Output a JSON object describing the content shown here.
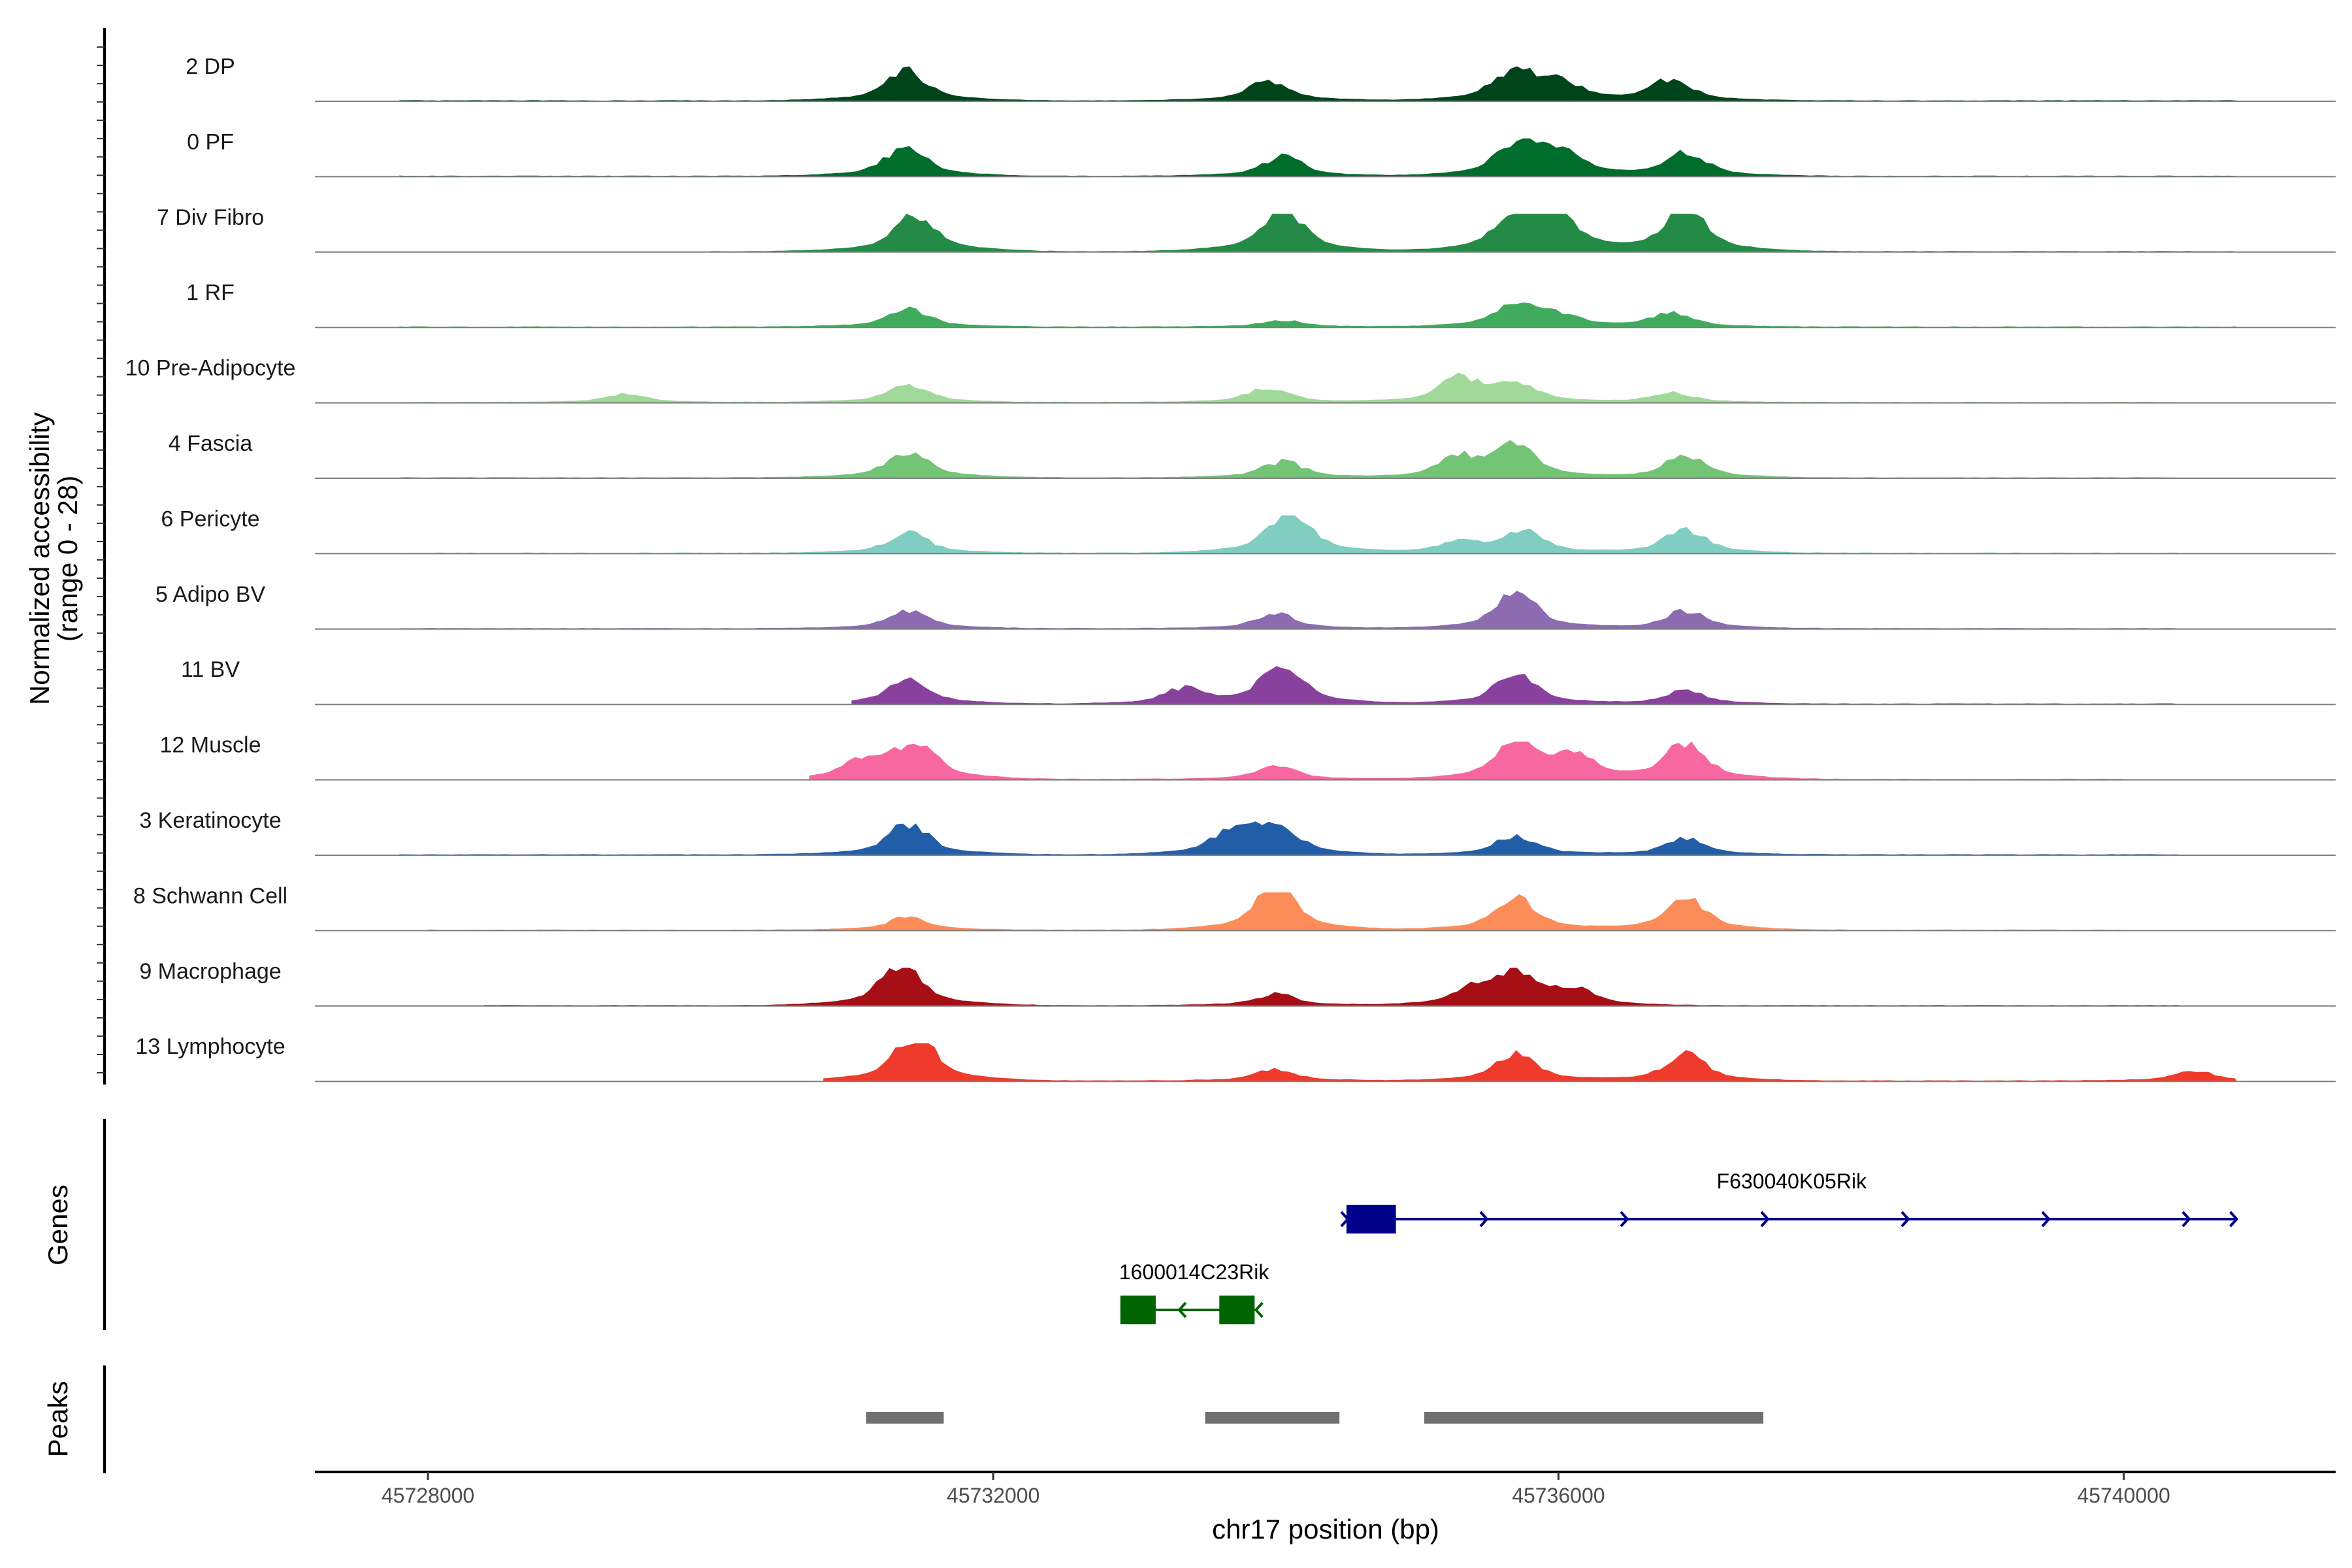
{
  "chart_data": {
    "type": "area",
    "title": "",
    "xlabel": "chr17 position (bp)",
    "ylabel": "Normalized accessibility",
    "ylabel_range": "(range 0 - 28)",
    "xlim": [
      45727200,
      45741500
    ],
    "ylim": [
      0,
      28
    ],
    "xticks": [
      45728000,
      45732000,
      45736000,
      45740000
    ],
    "xtick_labels": [
      "45728000",
      "45732000",
      "45736000",
      "45740000"
    ],
    "tracks": [
      {
        "name": "2 DP",
        "color": "#00441b",
        "span": [
          45727800,
          45740800
        ],
        "peaks": [
          [
            45731380,
            19
          ],
          [
            45733950,
            13
          ],
          [
            45735680,
            18
          ],
          [
            45736000,
            11
          ],
          [
            45736800,
            13
          ]
        ]
      },
      {
        "name": "0 PF",
        "color": "#006d2c",
        "span": [
          45727800,
          45740800
        ],
        "peaks": [
          [
            45731380,
            18
          ],
          [
            45734050,
            12
          ],
          [
            45735700,
            19
          ],
          [
            45736000,
            16
          ],
          [
            45736900,
            15
          ]
        ]
      },
      {
        "name": "7 Div Fibro",
        "color": "#238b45",
        "span": [
          45730000,
          45740800
        ],
        "peaks": [
          [
            45731450,
            24
          ],
          [
            45734050,
            28
          ],
          [
            45735700,
            24
          ],
          [
            45736000,
            19
          ],
          [
            45736900,
            27
          ]
        ]
      },
      {
        "name": "1 RF",
        "color": "#41ab5d",
        "span": [
          45727800,
          45740800
        ],
        "peaks": [
          [
            45731400,
            11
          ],
          [
            45734050,
            4
          ],
          [
            45735700,
            15
          ],
          [
            45736000,
            6
          ],
          [
            45736800,
            9
          ]
        ]
      },
      {
        "name": "10 Pre-Adipocyte",
        "color": "#a1d99b",
        "span": [
          45727800,
          45740400
        ],
        "peaks": [
          [
            45729400,
            5
          ],
          [
            45731400,
            11
          ],
          [
            45733950,
            9
          ],
          [
            45735300,
            15
          ],
          [
            45735700,
            12
          ],
          [
            45736800,
            6
          ]
        ]
      },
      {
        "name": "4 Fascia",
        "color": "#74c476",
        "span": [
          45727800,
          45740400
        ],
        "peaks": [
          [
            45731400,
            17
          ],
          [
            45734050,
            10
          ],
          [
            45735300,
            12
          ],
          [
            45735700,
            20
          ],
          [
            45736900,
            14
          ]
        ]
      },
      {
        "name": "6 Pericyte",
        "color": "#80cdc1",
        "span": [
          45727800,
          45740400
        ],
        "peaks": [
          [
            45731400,
            12
          ],
          [
            45734100,
            28
          ],
          [
            45735300,
            7
          ],
          [
            45735750,
            13
          ],
          [
            45736900,
            15
          ]
        ]
      },
      {
        "name": "5 Adipo BV",
        "color": "#8c6bb1",
        "span": [
          45727800,
          45740400
        ],
        "peaks": [
          [
            45731400,
            11
          ],
          [
            45734000,
            9
          ],
          [
            45735700,
            22
          ],
          [
            45736900,
            11
          ]
        ]
      },
      {
        "name": "11 BV",
        "color": "#88419d",
        "span": [
          45731000,
          45740400
        ],
        "peaks": [
          [
            45731400,
            16
          ],
          [
            45733350,
            9
          ],
          [
            45734050,
            26
          ],
          [
            45735700,
            19
          ],
          [
            45736900,
            8
          ]
        ]
      },
      {
        "name": "12 Muscle",
        "color": "#f768a1",
        "span": [
          45730700,
          45740000
        ],
        "peaks": [
          [
            45731100,
            12
          ],
          [
            45731450,
            22
          ],
          [
            45734000,
            8
          ],
          [
            45735700,
            24
          ],
          [
            45736100,
            14
          ],
          [
            45736900,
            22
          ]
        ]
      },
      {
        "name": "3 Keratinocyte",
        "color": "#225ea8",
        "span": [
          45727800,
          45740400
        ],
        "peaks": [
          [
            45731400,
            19
          ],
          [
            45733700,
            14
          ],
          [
            45734000,
            18
          ],
          [
            45735700,
            12
          ],
          [
            45736900,
            10
          ]
        ]
      },
      {
        "name": "8 Schwann Cell",
        "color": "#fc8d59",
        "span": [
          45728000,
          45740000
        ],
        "peaks": [
          [
            45731400,
            8
          ],
          [
            45734000,
            28
          ],
          [
            45735700,
            21
          ],
          [
            45736900,
            20
          ]
        ]
      },
      {
        "name": "9 Macrophage",
        "color": "#a50f15",
        "span": [
          45728400,
          45740400
        ],
        "peaks": [
          [
            45731350,
            26
          ],
          [
            45734000,
            7
          ],
          [
            45735400,
            9
          ],
          [
            45735700,
            20
          ],
          [
            45736100,
            9
          ]
        ]
      },
      {
        "name": "13 Lymphocyte",
        "color": "#ef3b2c",
        "span": [
          45730800,
          45740800
        ],
        "peaks": [
          [
            45731450,
            28
          ],
          [
            45734000,
            7
          ],
          [
            45735700,
            17
          ],
          [
            45736900,
            16
          ],
          [
            45740500,
            6
          ]
        ]
      }
    ],
    "genes_label": "Genes",
    "genes": [
      {
        "name": "F630040K05Rik",
        "strand": "+",
        "start": 45734500,
        "end": 45740800,
        "exons": [
          [
            45734500,
            45734850
          ]
        ],
        "color": "#00008b"
      },
      {
        "name": "1600014C23Rik",
        "strand": "-",
        "start": 45732900,
        "end": 45733850,
        "exons": [
          [
            45732900,
            45733150
          ],
          [
            45733600,
            45733850
          ]
        ],
        "color": "#006400"
      }
    ],
    "peaks_label": "Peaks",
    "peak_regions": [
      [
        45731100,
        45731650
      ],
      [
        45733500,
        45734450
      ],
      [
        45735050,
        45737450
      ]
    ]
  }
}
